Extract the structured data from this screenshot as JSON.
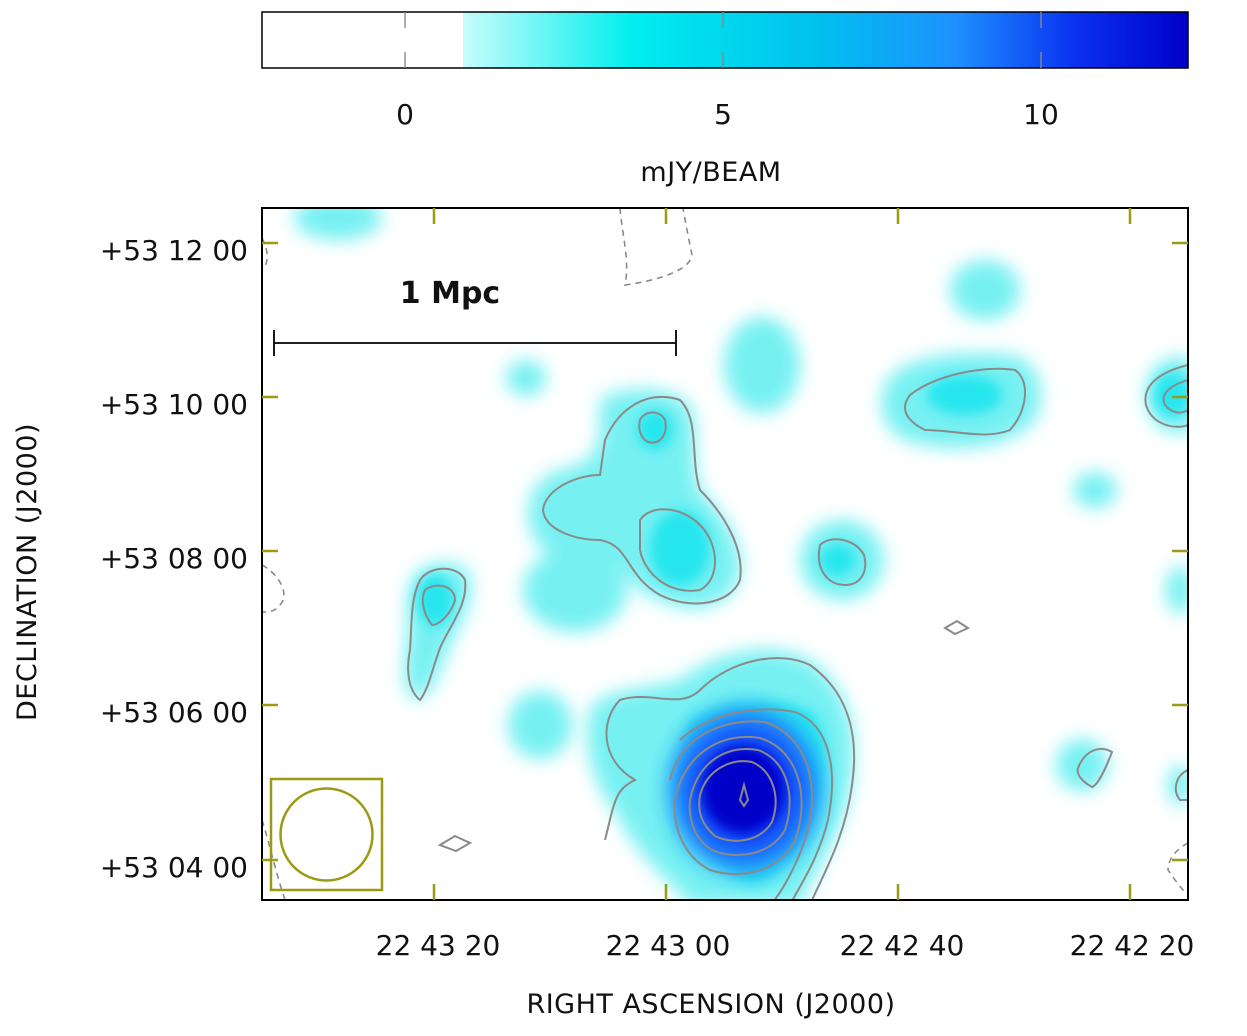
{
  "chart_data": {
    "type": "heatmap",
    "colorbar": {
      "label": "mJY/BEAM",
      "ticks": [
        "0",
        "5",
        "10"
      ],
      "tick_values": [
        0,
        5,
        10
      ],
      "range": [
        -2.3,
        12.3
      ],
      "white_below": 0.9,
      "colors": {
        "low": "#ffffff",
        "start": "#c8fcfc",
        "mid": "#00eeee",
        "upper": "#1e90ff",
        "peak": "#0000c8"
      }
    },
    "xlabel": "RIGHT ASCENSION (J2000)",
    "ylabel": "DECLINATION (J2000)",
    "x_ticks": [
      "22 43 20",
      "22 43 00",
      "22 42 40",
      "22 42 20"
    ],
    "y_ticks": [
      "+53 12 00",
      "+53 10 00",
      "+53 08 00",
      "+53 06 00",
      "+53 04 00"
    ],
    "scale_bar": {
      "label": "1 Mpc"
    },
    "beam": "circular beam, lower-left corner",
    "peak_mJy_per_beam": 12,
    "contours": "grey contour levels over the emission"
  },
  "colors": {
    "tick": "#9a9a14",
    "contour": "#8a8a8a",
    "frame": "#000000"
  }
}
